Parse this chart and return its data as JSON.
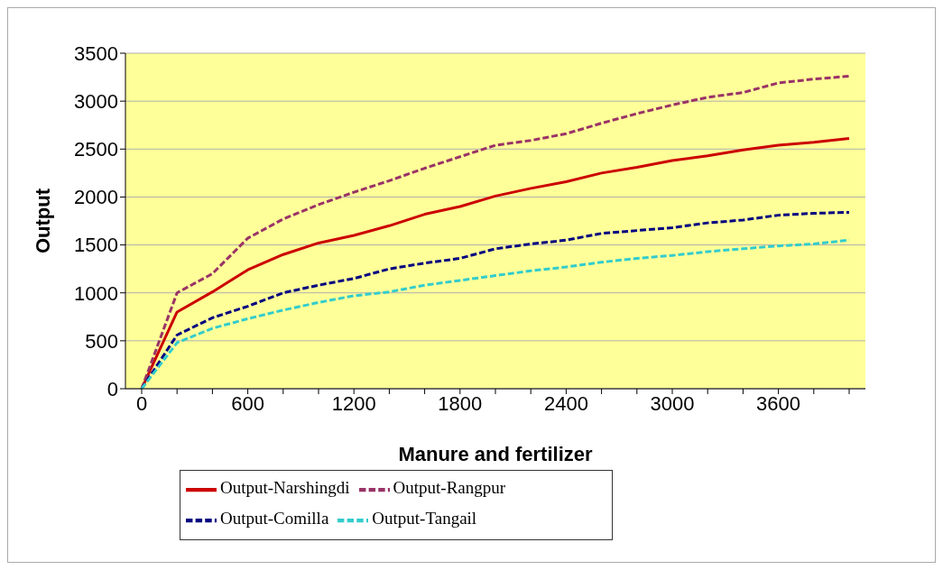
{
  "chart_data": {
    "type": "line",
    "xlabel": "Manure and fertilizer",
    "ylabel": "Output",
    "categories": [
      "0",
      null,
      null,
      "600",
      null,
      null,
      "1200",
      null,
      null,
      "1800",
      null,
      null,
      "2400",
      null,
      null,
      "3000",
      null,
      null,
      "3600",
      null,
      null
    ],
    "series": [
      {
        "name": "Output-Narshingdi",
        "color": "#cc0000",
        "line_style": "solid",
        "values": [
          0,
          800,
          1010,
          1240,
          1400,
          1520,
          1600,
          1700,
          1820,
          1900,
          2010,
          2090,
          2160,
          2250,
          2310,
          2380,
          2430,
          2490,
          2540,
          2570,
          2610
        ]
      },
      {
        "name": "Output-Rangpur",
        "color": "#993366",
        "line_style": "dashed",
        "values": [
          0,
          1000,
          1200,
          1570,
          1770,
          1920,
          2050,
          2170,
          2300,
          2420,
          2540,
          2590,
          2660,
          2770,
          2870,
          2960,
          3040,
          3090,
          3190,
          3230,
          3260
        ]
      },
      {
        "name": "Output-Comilla",
        "color": "#000080",
        "line_style": "dashed",
        "values": [
          0,
          560,
          740,
          860,
          1000,
          1080,
          1150,
          1250,
          1310,
          1360,
          1460,
          1510,
          1550,
          1620,
          1650,
          1680,
          1730,
          1760,
          1810,
          1830,
          1840
        ]
      },
      {
        "name": "Output-Tangail",
        "color": "#33cccc",
        "line_style": "dashed",
        "values": [
          0,
          480,
          630,
          730,
          820,
          900,
          970,
          1010,
          1080,
          1130,
          1180,
          1230,
          1270,
          1320,
          1360,
          1390,
          1430,
          1460,
          1490,
          1510,
          1550
        ]
      }
    ],
    "ylim": [
      0,
      3500
    ],
    "yticks": [
      0,
      500,
      1000,
      1500,
      2000,
      2500,
      3000,
      3500
    ],
    "grid": "y",
    "legend": "bottom",
    "marker": "none"
  }
}
